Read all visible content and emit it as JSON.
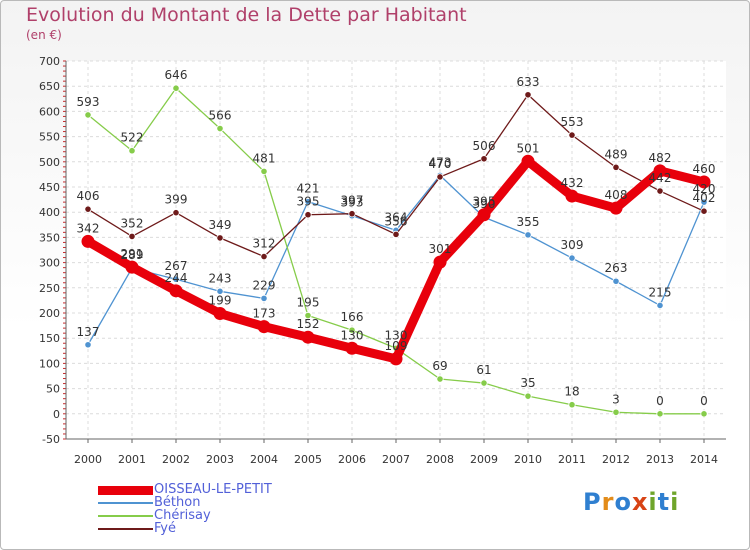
{
  "title": "Evolution du Montant de la Dette par Habitant",
  "subtitle": "(en €)",
  "logo": {
    "text": "Proxiti",
    "colors": [
      "#2f7fd0",
      "#e38c1a",
      "#2f7fd0",
      "#d84315",
      "#6fa52b",
      "#2f7fd0",
      "#6fa52b"
    ]
  },
  "chart_data": {
    "type": "line",
    "x": [
      "2000",
      "2001",
      "2002",
      "2003",
      "2004",
      "2005",
      "2006",
      "2007",
      "2008",
      "2009",
      "2010",
      "2011",
      "2012",
      "2013",
      "2014"
    ],
    "ylim": [
      -50,
      700
    ],
    "yticks": [
      -50,
      0,
      50,
      100,
      150,
      200,
      250,
      300,
      350,
      400,
      450,
      500,
      550,
      600,
      650,
      700
    ],
    "grid": true,
    "legend_position": "bottom-left",
    "series": [
      {
        "name": "OISSEAU-LE-PETIT",
        "color": "#e8000b",
        "values": [
          342,
          291,
          244,
          199,
          173,
          152,
          130,
          109,
          301,
          395,
          501,
          432,
          408,
          482,
          460
        ],
        "labels": [
          "342",
          "291",
          "244",
          "199",
          "173",
          "152",
          "130",
          "109",
          "301",
          "395",
          "501",
          "432",
          "408",
          "482",
          "460"
        ]
      },
      {
        "name": "Béthon",
        "color": "#4f93d1",
        "values": [
          137,
          289,
          267,
          243,
          229,
          421,
          393,
          364,
          473,
          390,
          355,
          309,
          263,
          215,
          420
        ],
        "labels": [
          "137",
          "289",
          "267",
          "243",
          "229",
          "421",
          "393",
          "364",
          "473",
          "390",
          "355",
          "309",
          "263",
          "215",
          "420"
        ]
      },
      {
        "name": "Chérisay",
        "color": "#86cc4a",
        "values": [
          593,
          522,
          646,
          566,
          481,
          195,
          166,
          130,
          69,
          61,
          35,
          18,
          3,
          0,
          0
        ],
        "labels": [
          "593",
          "522",
          "646",
          "566",
          "481",
          "195",
          "166",
          "130",
          "69",
          "61",
          "35",
          "18",
          "3",
          "0",
          "0"
        ]
      },
      {
        "name": "Fyé",
        "color": "#6e1a1a",
        "values": [
          406,
          352,
          399,
          349,
          312,
          395,
          397,
          356,
          470,
          506,
          633,
          553,
          489,
          442,
          402
        ],
        "labels": [
          "406",
          "352",
          "399",
          "349",
          "312",
          "395",
          "397",
          "356",
          "470",
          "506",
          "633",
          "553",
          "489",
          "442",
          "402"
        ]
      }
    ]
  }
}
